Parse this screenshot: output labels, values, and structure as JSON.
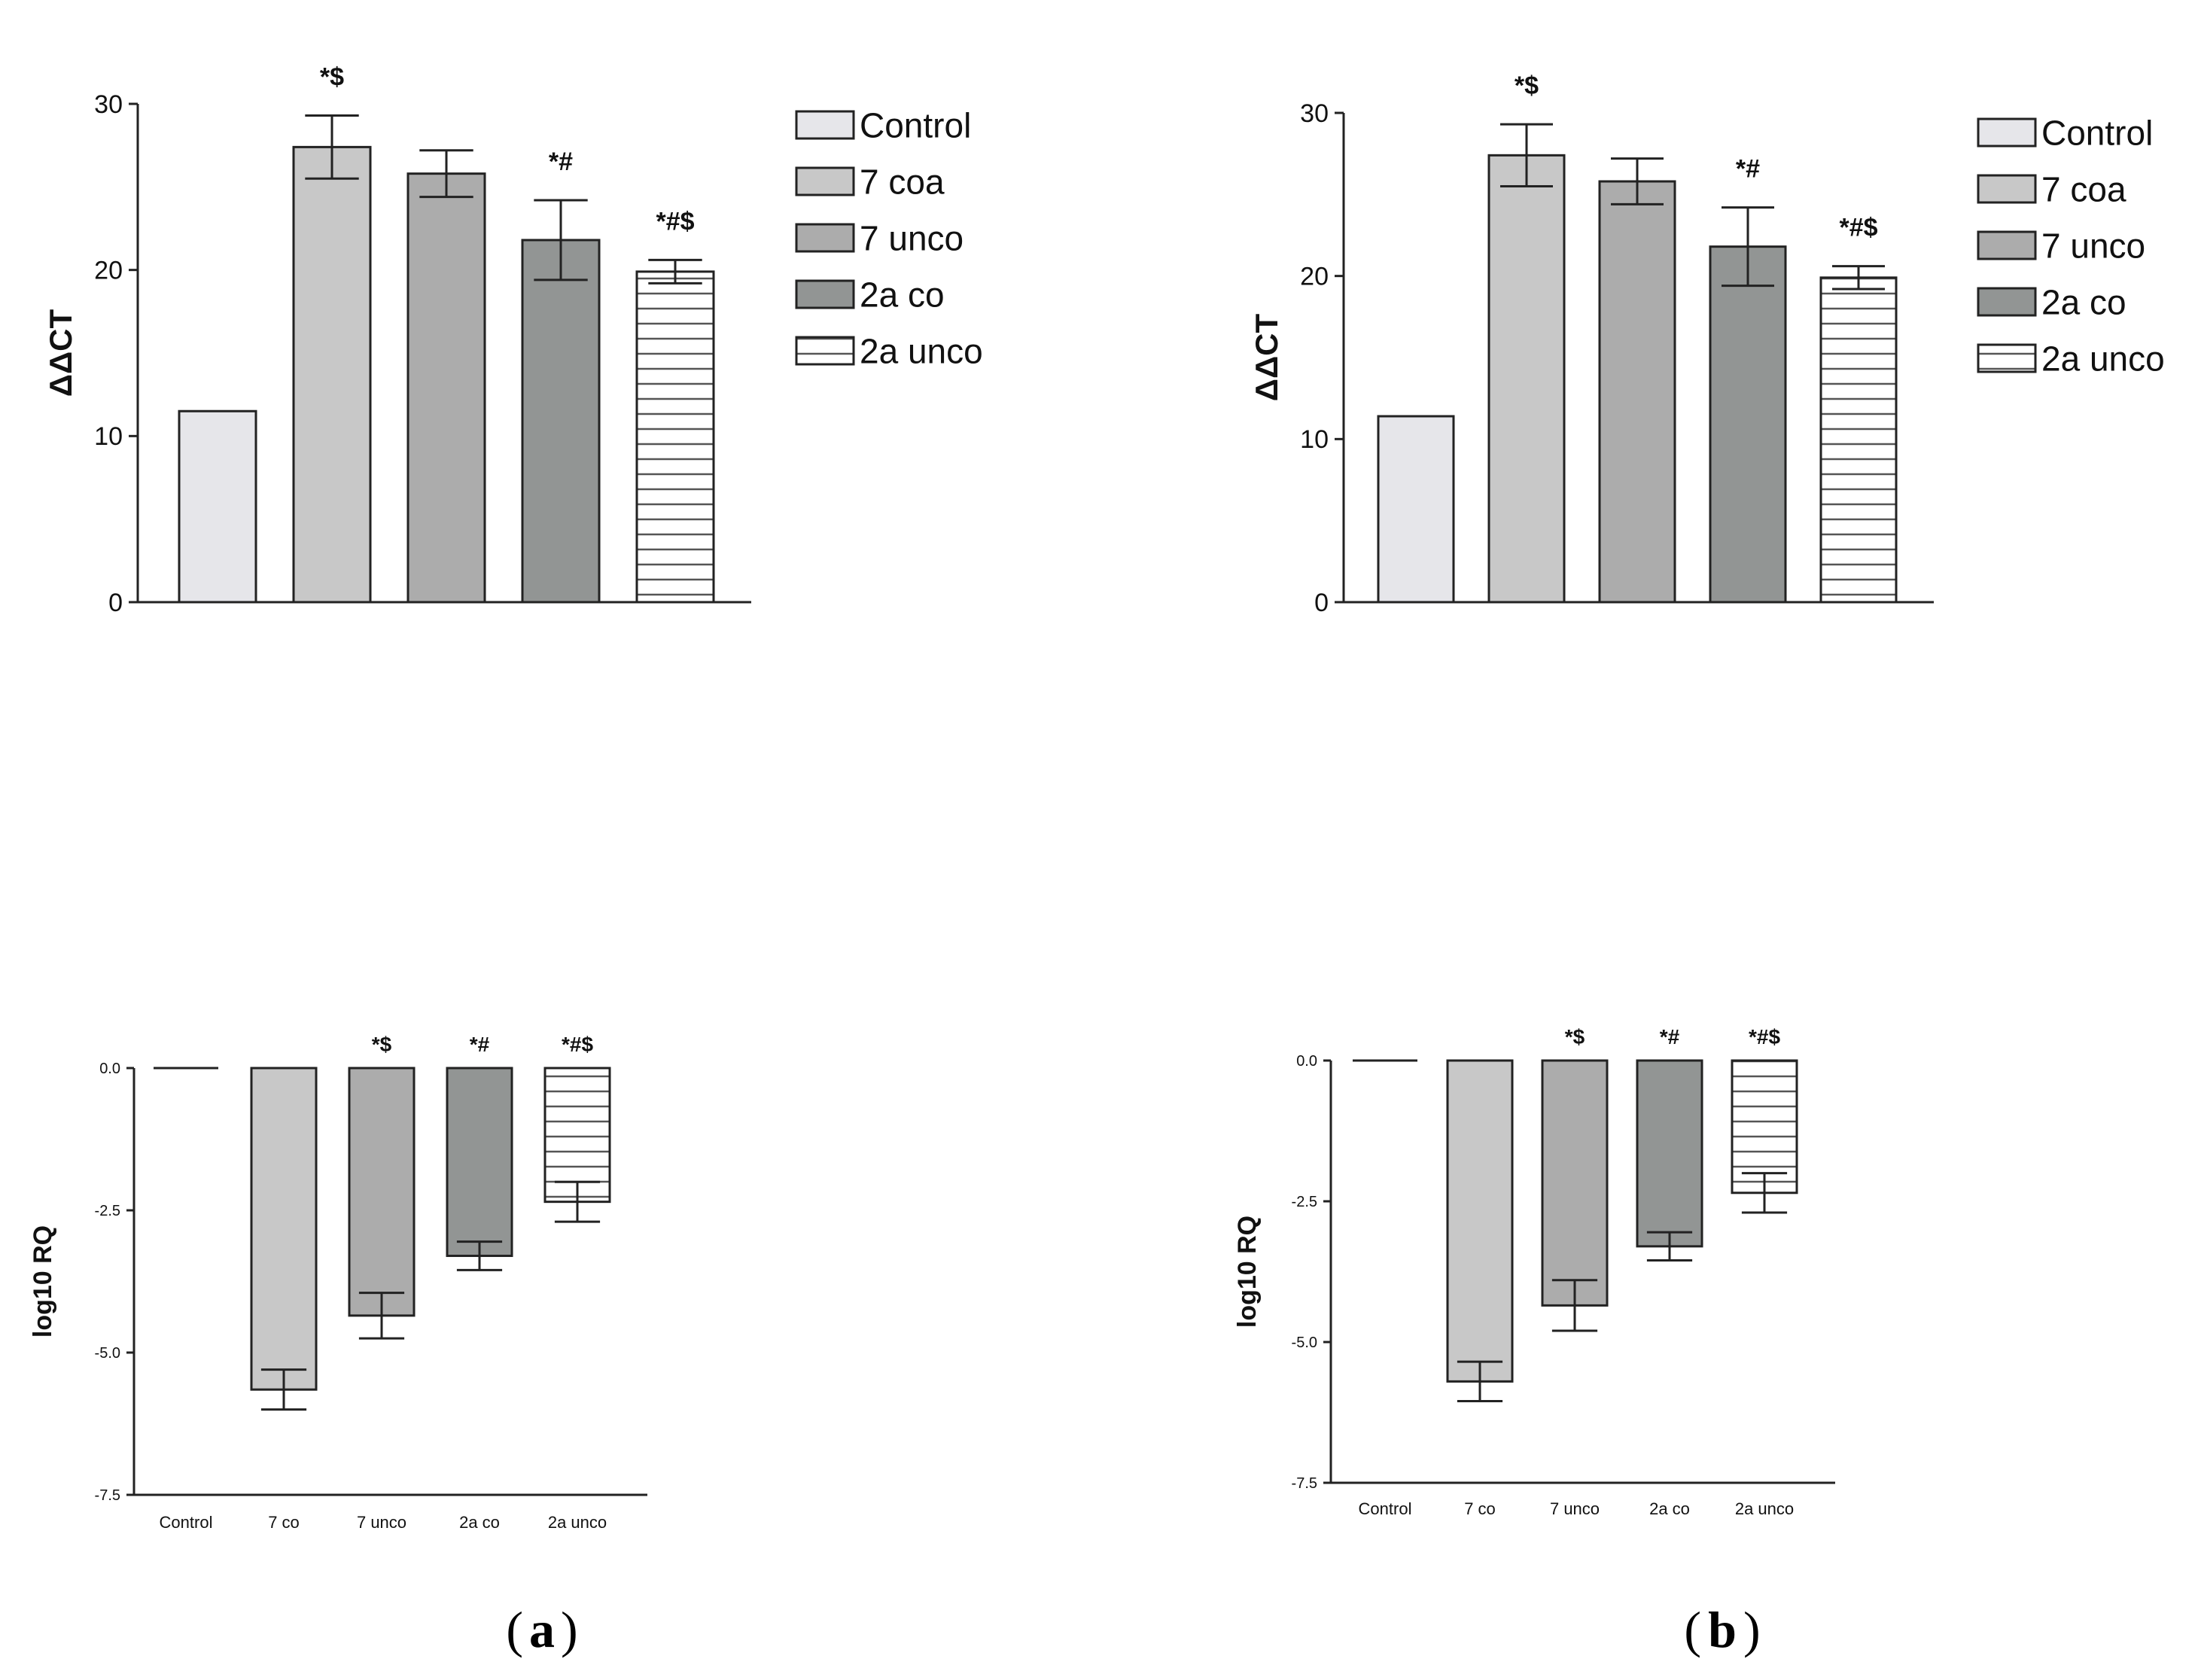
{
  "figure": {
    "panel_labels": [
      "a",
      "b"
    ]
  },
  "colors": {
    "control": "#e6e6ea",
    "seven_co": "#c8c8c8",
    "seven_unco": "#acacac",
    "two_a_co": "#929594",
    "two_a_unco": "#ffffff",
    "stroke": "#222222"
  },
  "chart_data": [
    {
      "id": "a-top",
      "panel": "a",
      "type": "bar",
      "title": "",
      "xlabel": "",
      "ylabel": "ΔΔCT",
      "ylim": [
        0,
        30
      ],
      "yticks": [
        "0",
        "10",
        "20",
        "30"
      ],
      "categories": [
        "Control",
        "7 coa",
        "7 unco",
        "2a co",
        "2a unco"
      ],
      "values": [
        11.5,
        27.4,
        25.8,
        21.8,
        19.9
      ],
      "errors": [
        0,
        1.9,
        1.4,
        2.4,
        0.7
      ],
      "significance": [
        "",
        "*$",
        "",
        "*#",
        "*#$"
      ],
      "legend": [
        "Control",
        "7 coa",
        "7 unco",
        "2a co",
        "2a unco"
      ],
      "legend_position": "right"
    },
    {
      "id": "b-top",
      "panel": "b",
      "type": "bar",
      "title": "",
      "xlabel": "",
      "ylabel": "ΔΔCT",
      "ylim": [
        0,
        30
      ],
      "yticks": [
        "0",
        "10",
        "20",
        "30"
      ],
      "categories": [
        "Control",
        "7 coa",
        "7 unco",
        "2a co",
        "2a unco"
      ],
      "values": [
        11.4,
        27.4,
        25.8,
        21.8,
        19.9
      ],
      "errors": [
        0,
        1.9,
        1.4,
        2.4,
        0.7
      ],
      "significance": [
        "",
        "*$",
        "",
        "*#",
        "*#$"
      ],
      "legend": [
        "Control",
        "7 coa",
        "7 unco",
        "2a co",
        "2a unco"
      ],
      "legend_position": "right"
    },
    {
      "id": "a-bottom",
      "panel": "a",
      "type": "bar",
      "title": "",
      "xlabel": "",
      "ylabel": "log10 RQ",
      "ylim": [
        -7.5,
        0
      ],
      "yticks": [
        "-7.5",
        "-5.0",
        "-2.5",
        "0.0"
      ],
      "categories": [
        "Control",
        "7 co",
        "7 unco",
        "2a co",
        "2a unco"
      ],
      "values": [
        0,
        -5.65,
        -4.35,
        -3.3,
        -2.35
      ],
      "errors": [
        0,
        0.35,
        0.4,
        0.25,
        0.35
      ],
      "significance": [
        "",
        "",
        "*$",
        "*#",
        "*#$"
      ]
    },
    {
      "id": "b-bottom",
      "panel": "b",
      "type": "bar",
      "title": "",
      "xlabel": "",
      "ylabel": "log10 RQ",
      "ylim": [
        -7.5,
        0
      ],
      "yticks": [
        "-7.5",
        "-5.0",
        "-2.5",
        "0.0"
      ],
      "categories": [
        "Control",
        "7 co",
        "7 unco",
        "2a co",
        "2a unco"
      ],
      "values": [
        0,
        -5.7,
        -4.35,
        -3.3,
        -2.35
      ],
      "errors": [
        0,
        0.35,
        0.45,
        0.25,
        0.35
      ],
      "significance": [
        "",
        "",
        "*$",
        "*#",
        "*#$"
      ]
    }
  ]
}
